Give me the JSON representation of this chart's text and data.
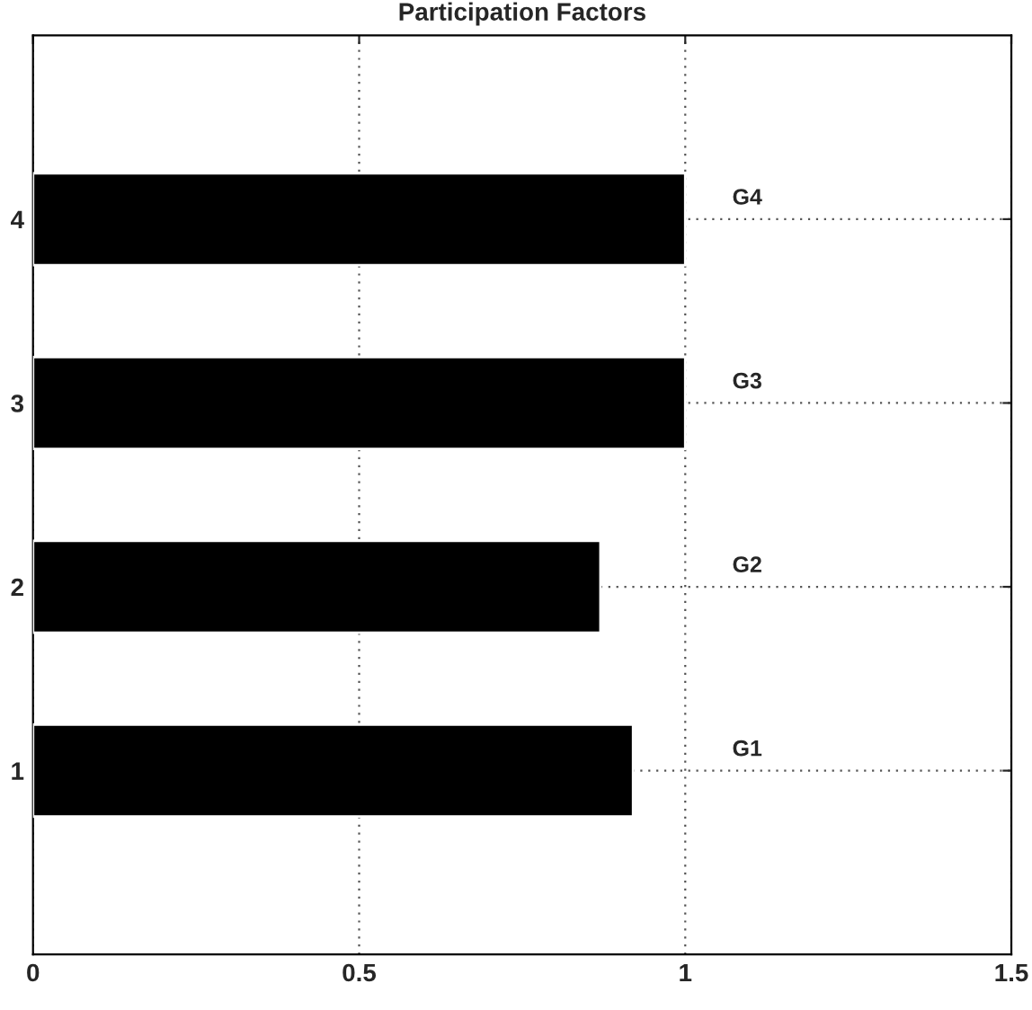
{
  "chart_data": {
    "type": "bar",
    "orientation": "horizontal",
    "title": "Participation Factors",
    "categories": [
      "4",
      "3",
      "2",
      "1"
    ],
    "values": [
      1.0,
      1.0,
      0.87,
      0.92
    ],
    "color": "#000000",
    "xlim": [
      0,
      1.5
    ],
    "xticks": [
      0,
      0.5,
      1,
      1.5
    ],
    "grid": true,
    "annotations": [
      "G4",
      "G3",
      "G2",
      "G1"
    ]
  }
}
